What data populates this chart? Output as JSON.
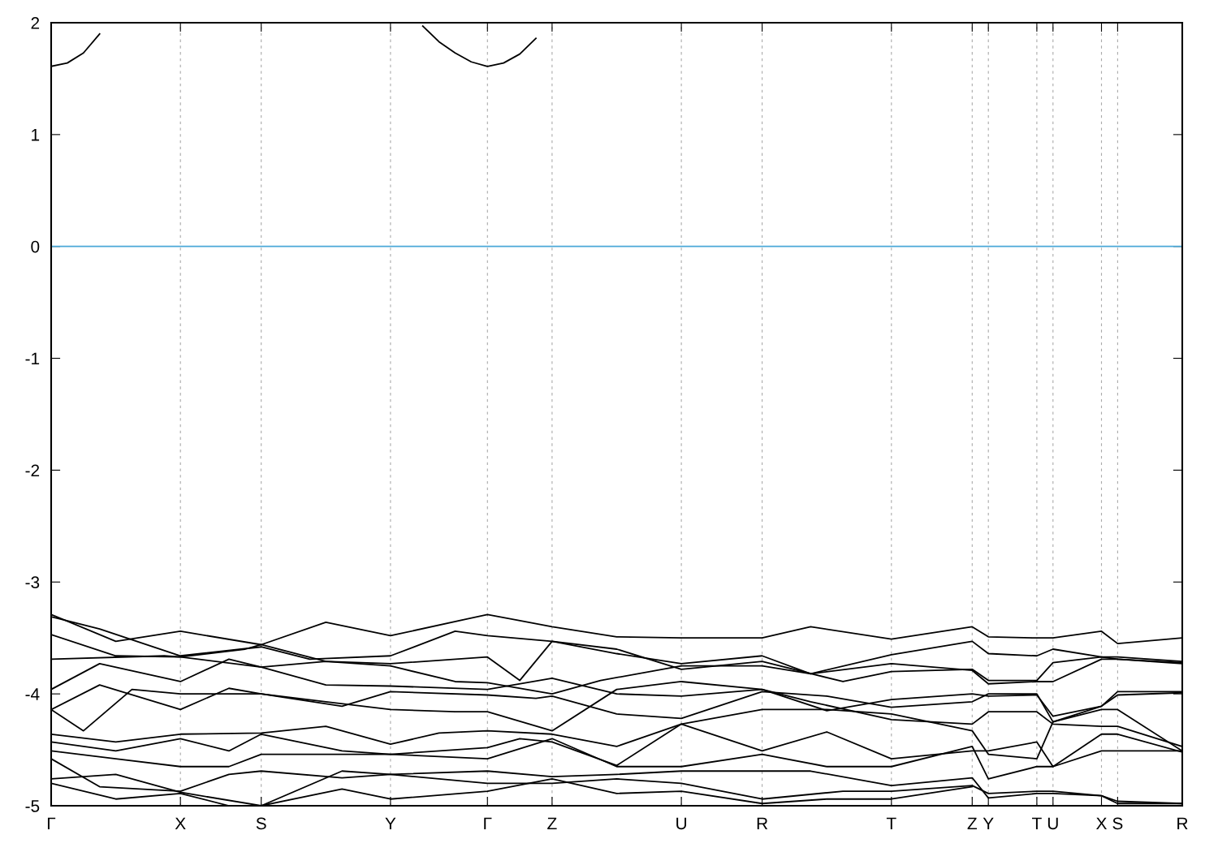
{
  "chart_data": {
    "type": "line",
    "ylim": [
      -5,
      2
    ],
    "categories": [
      "Γ",
      null,
      null,
      null,
      null,
      null,
      null,
      null,
      "X",
      null,
      null,
      null,
      null,
      "S",
      null,
      null,
      null,
      null,
      null,
      null,
      null,
      "Y",
      null,
      null,
      null,
      null,
      null,
      "Γ",
      null,
      null,
      null,
      "Z",
      null,
      null,
      null,
      null,
      null,
      null,
      null,
      "U",
      null,
      null,
      null,
      null,
      "R",
      null,
      null,
      null,
      null,
      null,
      null,
      null,
      "T",
      null,
      null,
      null,
      null,
      "Z",
      "Y",
      null,
      null,
      "T",
      "U",
      null,
      null,
      "X",
      "S",
      null,
      null,
      null,
      "R"
    ],
    "yticks": [
      -5,
      -4,
      -3,
      -2,
      -1,
      0,
      1,
      2
    ],
    "grid": "x",
    "marker": "none",
    "line_style": "solid",
    "ref_lines": [
      {
        "axis": "y",
        "value": 0,
        "color": "#4aa8d8"
      }
    ],
    "series": [
      {
        "color": "#000000",
        "values": [
          1.61,
          1.64,
          1.73,
          1.9,
          null,
          null,
          null,
          null,
          null,
          null,
          null,
          null,
          null,
          null,
          null,
          null,
          null,
          null,
          null,
          null,
          null,
          null,
          null,
          null,
          null,
          null,
          null,
          null,
          null,
          null,
          null,
          null,
          null,
          null,
          null,
          null,
          null,
          null,
          null,
          null,
          null,
          null,
          null,
          null,
          null,
          null,
          null,
          null,
          null,
          null,
          null,
          null,
          null,
          null,
          null,
          null,
          null,
          null,
          null,
          null,
          null,
          null,
          null,
          null,
          null,
          null,
          null,
          null,
          null,
          null,
          null
        ]
      },
      {
        "color": "#000000",
        "values": [
          null,
          null,
          null,
          null,
          null,
          null,
          null,
          null,
          null,
          null,
          null,
          null,
          null,
          null,
          null,
          null,
          null,
          null,
          null,
          null,
          null,
          null,
          null,
          1.97,
          1.83,
          1.73,
          1.65,
          1.61,
          1.64,
          1.72,
          1.86,
          null,
          null,
          null,
          null,
          null,
          null,
          null,
          null,
          null,
          null,
          null,
          null,
          null,
          null,
          null,
          null,
          null,
          null,
          null,
          null,
          null,
          null,
          null,
          null,
          null,
          null,
          null,
          null,
          null,
          null,
          null,
          null,
          null,
          null,
          null,
          null,
          null,
          null,
          null,
          null
        ]
      },
      {
        "color": "#000000",
        "values": [
          -3.29,
          null,
          null,
          null,
          -3.53,
          null,
          null,
          null,
          -3.44,
          null,
          null,
          null,
          null,
          -3.56,
          null,
          null,
          null,
          -3.36,
          null,
          null,
          null,
          -3.48,
          null,
          null,
          null,
          null,
          null,
          -3.29,
          null,
          null,
          null,
          -3.4,
          null,
          null,
          null,
          -3.49,
          null,
          null,
          null,
          -3.5,
          null,
          null,
          null,
          null,
          -3.5,
          null,
          null,
          -3.4,
          null,
          null,
          null,
          null,
          -3.51,
          null,
          null,
          null,
          null,
          -3.4,
          -3.49,
          null,
          null,
          -3.5,
          -3.5,
          null,
          null,
          -3.44,
          -3.55,
          null,
          null,
          null,
          -3.5
        ]
      },
      {
        "color": "#000000",
        "values": [
          -3.31,
          null,
          null,
          -3.42,
          null,
          null,
          null,
          null,
          -3.66,
          null,
          null,
          null,
          null,
          -3.58,
          null,
          null,
          -3.69,
          null,
          null,
          null,
          null,
          -3.66,
          null,
          null,
          null,
          -3.44,
          null,
          -3.48,
          null,
          null,
          null,
          -3.53,
          null,
          null,
          null,
          -3.64,
          null,
          null,
          null,
          -3.73,
          null,
          null,
          null,
          null,
          -3.66,
          null,
          null,
          -3.82,
          null,
          null,
          null,
          null,
          -3.65,
          null,
          null,
          null,
          null,
          -3.53,
          -3.64,
          null,
          null,
          -3.66,
          -3.6,
          null,
          null,
          -3.67,
          -3.67,
          null,
          null,
          null,
          -3.71
        ]
      },
      {
        "color": "#000000",
        "values": [
          -3.47,
          null,
          null,
          null,
          -3.66,
          null,
          null,
          null,
          -3.67,
          null,
          null,
          null,
          -3.6,
          -3.56,
          null,
          null,
          null,
          -3.71,
          null,
          null,
          null,
          -3.73,
          null,
          null,
          null,
          null,
          null,
          -3.67,
          null,
          -3.88,
          null,
          -3.53,
          null,
          null,
          null,
          -3.6,
          null,
          null,
          null,
          -3.78,
          null,
          null,
          null,
          null,
          -3.71,
          null,
          null,
          null,
          null,
          -3.89,
          null,
          null,
          -3.8,
          null,
          null,
          null,
          null,
          -3.78,
          -3.88,
          null,
          null,
          -3.88,
          -3.72,
          null,
          null,
          -3.67,
          -3.69,
          null,
          null,
          null,
          -3.73
        ]
      },
      {
        "color": "#000000",
        "values": [
          -3.69,
          null,
          null,
          null,
          null,
          null,
          null,
          -3.66,
          -3.67,
          null,
          null,
          null,
          null,
          -3.76,
          null,
          null,
          null,
          -3.71,
          null,
          null,
          null,
          -3.75,
          null,
          null,
          null,
          -3.89,
          null,
          -3.9,
          null,
          null,
          null,
          -4.0,
          null,
          null,
          -3.88,
          null,
          null,
          null,
          null,
          -3.75,
          null,
          null,
          null,
          null,
          -3.75,
          null,
          null,
          -3.82,
          null,
          null,
          null,
          null,
          -3.73,
          null,
          null,
          null,
          null,
          -3.79,
          -3.91,
          null,
          null,
          -3.89,
          -3.89,
          null,
          null,
          -3.69,
          -3.69,
          null,
          null,
          null,
          -3.72
        ]
      },
      {
        "color": "#000000",
        "values": [
          -3.96,
          null,
          null,
          -3.73,
          null,
          null,
          null,
          null,
          -3.89,
          null,
          null,
          -3.69,
          null,
          -3.76,
          null,
          null,
          null,
          -3.92,
          null,
          null,
          null,
          -3.93,
          null,
          null,
          null,
          null,
          null,
          -3.96,
          null,
          null,
          null,
          -3.86,
          null,
          null,
          null,
          -4.0,
          null,
          null,
          null,
          -4.02,
          null,
          null,
          null,
          null,
          -3.96,
          null,
          null,
          null,
          -4.15,
          null,
          null,
          null,
          -4.05,
          null,
          null,
          null,
          null,
          -4.0,
          -4.02,
          null,
          null,
          -4.01,
          -4.2,
          null,
          null,
          -4.11,
          -3.98,
          null,
          null,
          null,
          -3.98
        ]
      },
      {
        "color": "#000000",
        "values": [
          -4.14,
          null,
          null,
          -3.92,
          null,
          null,
          null,
          null,
          -4.14,
          null,
          null,
          -3.95,
          null,
          -4.0,
          null,
          null,
          null,
          null,
          -4.11,
          null,
          null,
          -3.98,
          null,
          null,
          null,
          null,
          null,
          -4.01,
          null,
          null,
          -4.04,
          -4.02,
          null,
          null,
          null,
          -4.18,
          null,
          null,
          null,
          -4.22,
          null,
          null,
          null,
          null,
          -3.98,
          null,
          null,
          null,
          -4.02,
          null,
          null,
          null,
          -4.12,
          null,
          null,
          null,
          null,
          -4.07,
          -4.0,
          null,
          null,
          -4.0,
          -4.25,
          null,
          null,
          -4.11,
          -4.01,
          null,
          null,
          null,
          -3.99
        ]
      },
      {
        "color": "#000000",
        "values": [
          -4.14,
          null,
          -4.33,
          null,
          null,
          -3.96,
          null,
          null,
          -4.0,
          null,
          null,
          null,
          null,
          -4.0,
          null,
          null,
          null,
          -4.07,
          null,
          null,
          null,
          -4.14,
          null,
          null,
          null,
          -4.16,
          null,
          -4.16,
          null,
          null,
          null,
          -4.33,
          null,
          null,
          null,
          -3.96,
          null,
          null,
          null,
          -3.89,
          null,
          null,
          null,
          null,
          -3.96,
          null,
          null,
          -4.07,
          null,
          null,
          null,
          null,
          -4.23,
          null,
          null,
          null,
          null,
          -4.27,
          -4.16,
          null,
          null,
          -4.16,
          -4.27,
          null,
          null,
          -4.29,
          -4.29,
          null,
          null,
          null,
          -4.47
        ]
      },
      {
        "color": "#000000",
        "values": [
          -4.36,
          null,
          null,
          null,
          -4.43,
          null,
          null,
          null,
          -4.36,
          null,
          null,
          null,
          null,
          -4.35,
          null,
          null,
          null,
          -4.29,
          null,
          null,
          null,
          -4.45,
          null,
          null,
          -4.35,
          null,
          null,
          -4.33,
          null,
          null,
          null,
          -4.36,
          null,
          null,
          null,
          -4.47,
          null,
          null,
          null,
          -4.27,
          null,
          null,
          null,
          null,
          -4.14,
          null,
          null,
          null,
          -4.14,
          null,
          null,
          null,
          -4.18,
          null,
          null,
          null,
          null,
          -4.33,
          -4.54,
          null,
          null,
          -4.58,
          -4.25,
          null,
          null,
          -4.14,
          -4.14,
          null,
          null,
          null,
          -4.51
        ]
      },
      {
        "color": "#000000",
        "values": [
          -4.43,
          null,
          null,
          null,
          -4.51,
          null,
          null,
          null,
          -4.4,
          null,
          null,
          -4.51,
          null,
          -4.36,
          null,
          null,
          null,
          null,
          -4.51,
          null,
          null,
          -4.54,
          null,
          null,
          null,
          null,
          null,
          -4.48,
          null,
          -4.4,
          null,
          -4.43,
          null,
          null,
          null,
          -4.64,
          null,
          null,
          null,
          -4.27,
          null,
          null,
          null,
          null,
          -4.51,
          null,
          null,
          null,
          -4.34,
          null,
          null,
          null,
          -4.58,
          null,
          null,
          null,
          null,
          -4.51,
          -4.51,
          null,
          null,
          -4.43,
          -4.65,
          null,
          null,
          -4.36,
          -4.36,
          null,
          null,
          null,
          -4.52
        ]
      },
      {
        "color": "#000000",
        "values": [
          -4.51,
          null,
          null,
          null,
          -4.58,
          null,
          null,
          null,
          -4.65,
          null,
          null,
          -4.65,
          null,
          -4.54,
          null,
          null,
          null,
          null,
          -4.54,
          null,
          null,
          -4.54,
          null,
          null,
          null,
          null,
          null,
          -4.58,
          null,
          null,
          null,
          -4.4,
          null,
          null,
          null,
          -4.65,
          null,
          null,
          null,
          -4.65,
          null,
          null,
          null,
          null,
          -4.54,
          null,
          null,
          null,
          -4.65,
          null,
          null,
          null,
          -4.65,
          null,
          null,
          null,
          null,
          -4.47,
          -4.76,
          null,
          null,
          -4.65,
          -4.65,
          null,
          null,
          -4.51,
          -4.51,
          null,
          null,
          null,
          -4.51
        ]
      },
      {
        "color": "#000000",
        "values": [
          -4.58,
          null,
          null,
          -4.83,
          null,
          null,
          null,
          null,
          -4.87,
          null,
          null,
          -4.72,
          null,
          -4.69,
          null,
          null,
          null,
          null,
          -4.75,
          null,
          null,
          -4.72,
          null,
          null,
          null,
          null,
          null,
          -4.69,
          null,
          null,
          null,
          -4.74,
          null,
          null,
          null,
          -4.72,
          null,
          null,
          null,
          -4.69,
          null,
          null,
          null,
          null,
          -4.69,
          null,
          null,
          -4.69,
          null,
          null,
          null,
          null,
          -4.82,
          null,
          null,
          null,
          null,
          -4.75,
          -4.93,
          null,
          null,
          -4.89,
          -4.89,
          null,
          null,
          -4.91,
          -4.96,
          null,
          null,
          null,
          -4.98
        ]
      },
      {
        "color": "#000000",
        "values": [
          -4.76,
          null,
          null,
          null,
          -4.72,
          null,
          null,
          null,
          -4.88,
          null,
          null,
          null,
          null,
          -5.0,
          null,
          null,
          null,
          null,
          -4.69,
          null,
          null,
          -4.72,
          null,
          null,
          null,
          null,
          null,
          -4.8,
          null,
          null,
          null,
          -4.8,
          null,
          null,
          null,
          -4.76,
          null,
          null,
          null,
          -4.8,
          null,
          null,
          null,
          null,
          -4.94,
          null,
          null,
          null,
          null,
          -4.87,
          null,
          null,
          -4.87,
          null,
          null,
          null,
          null,
          -4.82,
          -4.89,
          null,
          null,
          -4.87,
          -4.87,
          null,
          null,
          -4.91,
          -4.98,
          null,
          null,
          null,
          -4.98
        ]
      },
      {
        "color": "#000000",
        "values": [
          -4.8,
          null,
          null,
          null,
          -4.94,
          null,
          null,
          null,
          -4.89,
          null,
          null,
          -5.0,
          null,
          -5.0,
          null,
          null,
          null,
          null,
          -4.85,
          null,
          null,
          -4.94,
          null,
          null,
          null,
          null,
          null,
          -4.87,
          null,
          null,
          null,
          -4.76,
          null,
          null,
          null,
          -4.89,
          null,
          null,
          null,
          -4.87,
          null,
          null,
          null,
          null,
          -4.98,
          null,
          null,
          null,
          -4.94,
          null,
          null,
          null,
          -4.94,
          null,
          null,
          null,
          null,
          -4.83,
          null,
          null,
          null,
          null,
          null,
          null,
          null,
          null,
          null,
          null,
          null,
          null,
          null
        ]
      }
    ]
  }
}
